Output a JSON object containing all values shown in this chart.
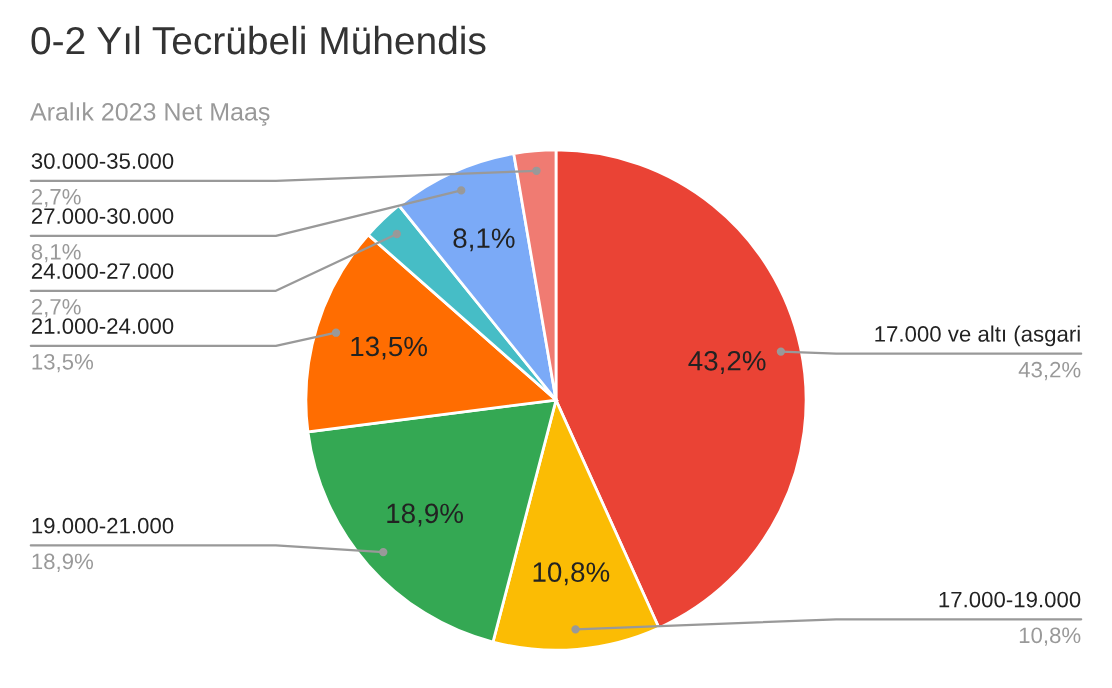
{
  "chart_data": {
    "type": "pie",
    "title": "0-2 Yıl Tecrübeli Mühendis",
    "subtitle": "Aralık 2023 Net Maaş",
    "categories": [
      "17.000 ve altı (asgari",
      "17.000-19.000",
      "19.000-21.000",
      "21.000-24.000",
      "24.000-27.000",
      "27.000-30.000",
      "30.000-35.000"
    ],
    "values": [
      43.2,
      10.8,
      18.9,
      13.5,
      2.7,
      8.1,
      2.7
    ],
    "colors": [
      "#ea4335",
      "#fbbc04",
      "#34a853",
      "#ff6d01",
      "#46bdc6",
      "#7baaf7",
      "#f07b72"
    ],
    "value_labels": [
      "43,2%",
      "10,8%",
      "18,9%",
      "13,5%",
      null,
      "8,1%",
      null
    ],
    "annotations": [
      "43,2%",
      "10,8%",
      "18,9%",
      "13,5%",
      "2,7%",
      "8,1%",
      "2,7%"
    ]
  }
}
